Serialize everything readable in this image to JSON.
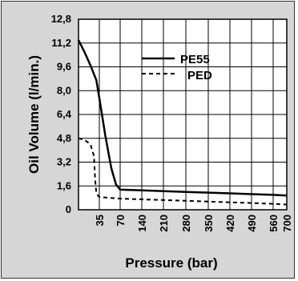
{
  "chart_data": {
    "type": "line",
    "xlabel": "Pressure (bar)",
    "ylabel": "Oil Volume (l/min.)",
    "x_ticks": [
      "35",
      "70",
      "140",
      "210",
      "280",
      "350",
      "420",
      "490",
      "560",
      "700"
    ],
    "y_ticks": [
      "12,8",
      "11,2",
      "9,6",
      "8,0",
      "6,4",
      "4,8",
      "3,2",
      "1,6",
      "0"
    ],
    "ylim": [
      0,
      12.8
    ],
    "x_scale": "categorical, uneven (tick labels 35, 70, 140 ... 700)",
    "grid": true,
    "legend": "top-right",
    "series": [
      {
        "name": "PE55",
        "style": "solid",
        "color": "#000000",
        "points": [
          {
            "x": 0,
            "y": 11.4
          },
          {
            "x": 10,
            "y": 10.6
          },
          {
            "x": 20,
            "y": 9.7
          },
          {
            "x": 30,
            "y": 8.7
          },
          {
            "x": 35,
            "y": 7.5
          },
          {
            "x": 45,
            "y": 5.0
          },
          {
            "x": 55,
            "y": 2.8
          },
          {
            "x": 63,
            "y": 1.7
          },
          {
            "x": 70,
            "y": 1.35
          },
          {
            "x": 140,
            "y": 1.3
          },
          {
            "x": 210,
            "y": 1.25
          },
          {
            "x": 280,
            "y": 1.2
          },
          {
            "x": 350,
            "y": 1.15
          },
          {
            "x": 420,
            "y": 1.1
          },
          {
            "x": 490,
            "y": 1.05
          },
          {
            "x": 560,
            "y": 1.0
          },
          {
            "x": 700,
            "y": 0.95
          }
        ]
      },
      {
        "name": "PED",
        "style": "dashed",
        "color": "#000000",
        "points": [
          {
            "x": 0,
            "y": 4.8
          },
          {
            "x": 10,
            "y": 4.7
          },
          {
            "x": 20,
            "y": 4.4
          },
          {
            "x": 26,
            "y": 3.6
          },
          {
            "x": 28,
            "y": 2.0
          },
          {
            "x": 30,
            "y": 1.1
          },
          {
            "x": 35,
            "y": 0.85
          },
          {
            "x": 70,
            "y": 0.75
          },
          {
            "x": 140,
            "y": 0.7
          },
          {
            "x": 210,
            "y": 0.65
          },
          {
            "x": 280,
            "y": 0.6
          },
          {
            "x": 350,
            "y": 0.55
          },
          {
            "x": 420,
            "y": 0.5
          },
          {
            "x": 490,
            "y": 0.45
          },
          {
            "x": 560,
            "y": 0.4
          },
          {
            "x": 700,
            "y": 0.35
          }
        ]
      }
    ]
  }
}
